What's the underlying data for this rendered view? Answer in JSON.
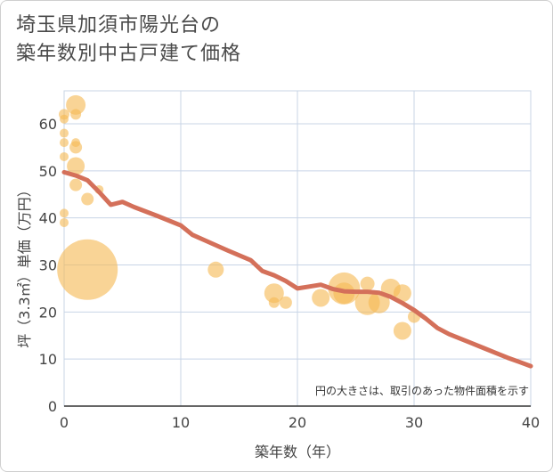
{
  "title_line1": "埼玉県加須市陽光台の",
  "title_line2": "築年数別中古戸建て価格",
  "chart_data": {
    "type": "scatter",
    "title": "埼玉県加須市陽光台の築年数別中古戸建て価格",
    "xlabel": "築年数（年）",
    "ylabel": "坪（3.3㎡）単価（万円）",
    "xlim": [
      0,
      40
    ],
    "ylim": [
      0,
      67
    ],
    "xticks": [
      0,
      10,
      20,
      30,
      40
    ],
    "yticks": [
      0,
      10,
      20,
      30,
      40,
      50,
      60
    ],
    "grid": true,
    "note": "円の大きさは、取引のあった物件面積を示す",
    "colors": {
      "bubble": "#f5b955",
      "trend": "#d4705a",
      "grid": "#c8d4e6"
    },
    "points": [
      {
        "x": 0,
        "y": 62,
        "s": 6
      },
      {
        "x": 0,
        "y": 61,
        "s": 5
      },
      {
        "x": 0,
        "y": 58,
        "s": 5
      },
      {
        "x": 0,
        "y": 56,
        "s": 5
      },
      {
        "x": 0,
        "y": 53,
        "s": 5
      },
      {
        "x": 0,
        "y": 41,
        "s": 5
      },
      {
        "x": 0,
        "y": 39,
        "s": 5
      },
      {
        "x": 1,
        "y": 64,
        "s": 11
      },
      {
        "x": 1,
        "y": 62,
        "s": 6
      },
      {
        "x": 1,
        "y": 56,
        "s": 5
      },
      {
        "x": 1,
        "y": 55,
        "s": 7
      },
      {
        "x": 1,
        "y": 51,
        "s": 10
      },
      {
        "x": 1,
        "y": 47,
        "s": 7
      },
      {
        "x": 2,
        "y": 44,
        "s": 7
      },
      {
        "x": 3,
        "y": 46,
        "s": 5
      },
      {
        "x": 2,
        "y": 29,
        "s": 34
      },
      {
        "x": 13,
        "y": 29,
        "s": 9
      },
      {
        "x": 18,
        "y": 24,
        "s": 11
      },
      {
        "x": 18,
        "y": 22,
        "s": 6
      },
      {
        "x": 19,
        "y": 22,
        "s": 7
      },
      {
        "x": 22,
        "y": 23,
        "s": 10
      },
      {
        "x": 24,
        "y": 25,
        "s": 18
      },
      {
        "x": 24,
        "y": 24,
        "s": 12
      },
      {
        "x": 26,
        "y": 26,
        "s": 8
      },
      {
        "x": 26,
        "y": 22,
        "s": 14
      },
      {
        "x": 27,
        "y": 22,
        "s": 12
      },
      {
        "x": 28,
        "y": 25,
        "s": 11
      },
      {
        "x": 29,
        "y": 24,
        "s": 10
      },
      {
        "x": 29,
        "y": 16,
        "s": 10
      },
      {
        "x": 30,
        "y": 19,
        "s": 7
      }
    ],
    "trend": {
      "x": [
        0,
        1,
        2,
        3,
        4,
        5,
        6,
        8,
        10,
        11,
        12,
        14,
        16,
        17,
        18,
        19,
        20,
        21,
        22,
        23,
        24,
        25,
        26,
        27,
        28,
        29,
        30,
        31,
        32,
        33,
        34,
        35,
        36,
        37,
        38,
        39,
        40
      ],
      "y": [
        49.7,
        49,
        48,
        45.5,
        42.8,
        43.4,
        42.3,
        40.4,
        38.4,
        36.4,
        35.3,
        33.1,
        31,
        28.7,
        27.8,
        26.6,
        25,
        25.4,
        25.8,
        24.9,
        24.4,
        24.3,
        24.3,
        24.1,
        23.2,
        21.9,
        20.4,
        18.6,
        16.6,
        15.3,
        14.3,
        13.3,
        12.3,
        11.3,
        10.3,
        9.4,
        8.5
      ]
    }
  }
}
